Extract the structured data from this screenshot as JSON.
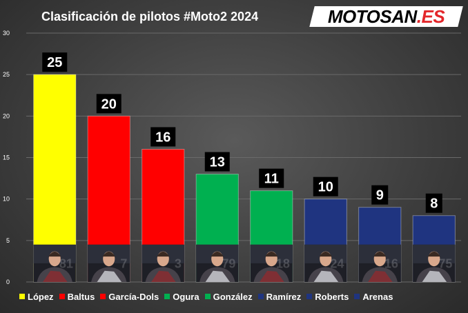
{
  "title": "Clasificación de pilotos #Moto2 2024",
  "logo": {
    "part1": "MOTOSAN",
    "part2": ".ES"
  },
  "colors": {
    "background": "#404040",
    "text": "#ffffff",
    "label_bg": "#000000",
    "grid": "#6a6a6a",
    "yellow": "#ffff00",
    "red": "#ff0000",
    "green": "#00b050",
    "navy": "#1f3480"
  },
  "chart_data": {
    "type": "bar",
    "title": "Clasificación de pilotos #Moto2 2024",
    "categories": [
      "López",
      "Baltus",
      "García-Dols",
      "Ogura",
      "González",
      "Ramírez",
      "Roberts",
      "Arenas"
    ],
    "values": [
      25,
      20,
      16,
      13,
      11,
      10,
      9,
      8
    ],
    "bar_colors": [
      "#ffff00",
      "#ff0000",
      "#ff0000",
      "#00b050",
      "#00b050",
      "#1f3480",
      "#1f3480",
      "#1f3480"
    ],
    "rider_numbers": [
      "81",
      "7",
      "3",
      "79",
      "18",
      "24",
      "16",
      "75"
    ],
    "ylim": [
      0,
      30
    ],
    "yticks": [
      0,
      5,
      10,
      15,
      20,
      25,
      30
    ],
    "grid": true,
    "legend_position": "bottom",
    "data_labels": true,
    "photo_icon": "rider-photo"
  }
}
